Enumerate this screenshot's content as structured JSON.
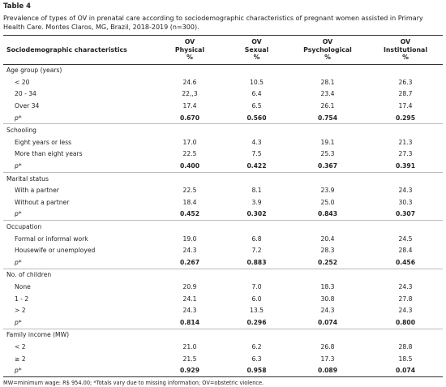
{
  "title": "Table 4",
  "caption": "Prevalence of types of OV in prenatal care according to sociodemographic characteristics of pregnant women assisted in Primary Health Care. Montes Claros, MG, Brazil, 2018-2019 (n=300).",
  "table": {
    "header": {
      "label": "Sociodemographic characteristics",
      "columns": [
        [
          "OV",
          "Physical",
          "%"
        ],
        [
          "OV",
          "Sexual",
          "%"
        ],
        [
          "OV",
          "Psychological",
          "%"
        ],
        [
          "OV",
          "Institutional",
          "%"
        ]
      ]
    },
    "groups": [
      {
        "label": "Age group (years)",
        "rows": [
          {
            "label": "< 20",
            "values": [
              "24.6",
              "10.5",
              "28.1",
              "26.3"
            ]
          },
          {
            "label": "20 - 34",
            "values": [
              "22,,3",
              "6.4",
              "23.4",
              "28.7"
            ]
          },
          {
            "label": "Over 34",
            "values": [
              "17.4",
              "6.5",
              "26.1",
              "17.4"
            ]
          },
          {
            "label": "p*",
            "values": [
              "0.670",
              "0.560",
              "0.754",
              "0.295"
            ]
          }
        ]
      },
      {
        "label": "Schooling",
        "rows": [
          {
            "label": "Eight years or less",
            "values": [
              "17.0",
              "4.3",
              "19.1",
              "21.3"
            ]
          },
          {
            "label": "More than eight years",
            "values": [
              "22.5",
              "7.5",
              "25.3",
              "27.3"
            ]
          },
          {
            "label": "p*",
            "values": [
              "0.400",
              "0.422",
              "0.367",
              "0.391"
            ]
          }
        ]
      },
      {
        "label": "Marital status",
        "rows": [
          {
            "label": "With a partner",
            "values": [
              "22.5",
              "8.1",
              "23.9",
              "24.3"
            ]
          },
          {
            "label": "Without a partner",
            "values": [
              "18.4",
              "3.9",
              "25.0",
              "30.3"
            ]
          },
          {
            "label": "p*",
            "values": [
              "0.452",
              "0.302",
              "0.843",
              "0.307"
            ]
          }
        ]
      },
      {
        "label": "Occupation",
        "rows": [
          {
            "label": "Formal or informal work",
            "values": [
              "19.0",
              "6.8",
              "20.4",
              "24.5"
            ]
          },
          {
            "label": "Housewife or unemployed",
            "values": [
              "24.3",
              "7.2",
              "28.3",
              "28.4"
            ]
          },
          {
            "label": "p*",
            "values": [
              "0.267",
              "0.883",
              "0.252",
              "0.456"
            ]
          }
        ]
      },
      {
        "label": "No. of children",
        "rows": [
          {
            "label": "None",
            "values": [
              "20.9",
              "7.0",
              "18.3",
              "24.3"
            ]
          },
          {
            "label": "1 - 2",
            "values": [
              "24.1",
              "6.0",
              "30.8",
              "27.8"
            ]
          },
          {
            "label": "> 2",
            "values": [
              "24.3",
              "13.5",
              "24.3",
              "24.3"
            ]
          },
          {
            "label": "p*",
            "values": [
              "0.814",
              "0.296",
              "0.074",
              "0.800"
            ]
          }
        ]
      },
      {
        "label": "Family income (MW)",
        "rows": [
          {
            "label": "< 2",
            "values": [
              "21.0",
              "6.2",
              "26.8",
              "28.8"
            ]
          },
          {
            "label": "≥ 2",
            "values": [
              "21.5",
              "6.3",
              "17.3",
              "18.5"
            ]
          },
          {
            "label": "p*",
            "values": [
              "0.929",
              "0.958",
              "0.089",
              "0.074"
            ]
          }
        ]
      }
    ]
  },
  "footnote": "MW=minimum wage: R$ 954.00; *Totals vary due to missing information; OV=obstetric violence."
}
